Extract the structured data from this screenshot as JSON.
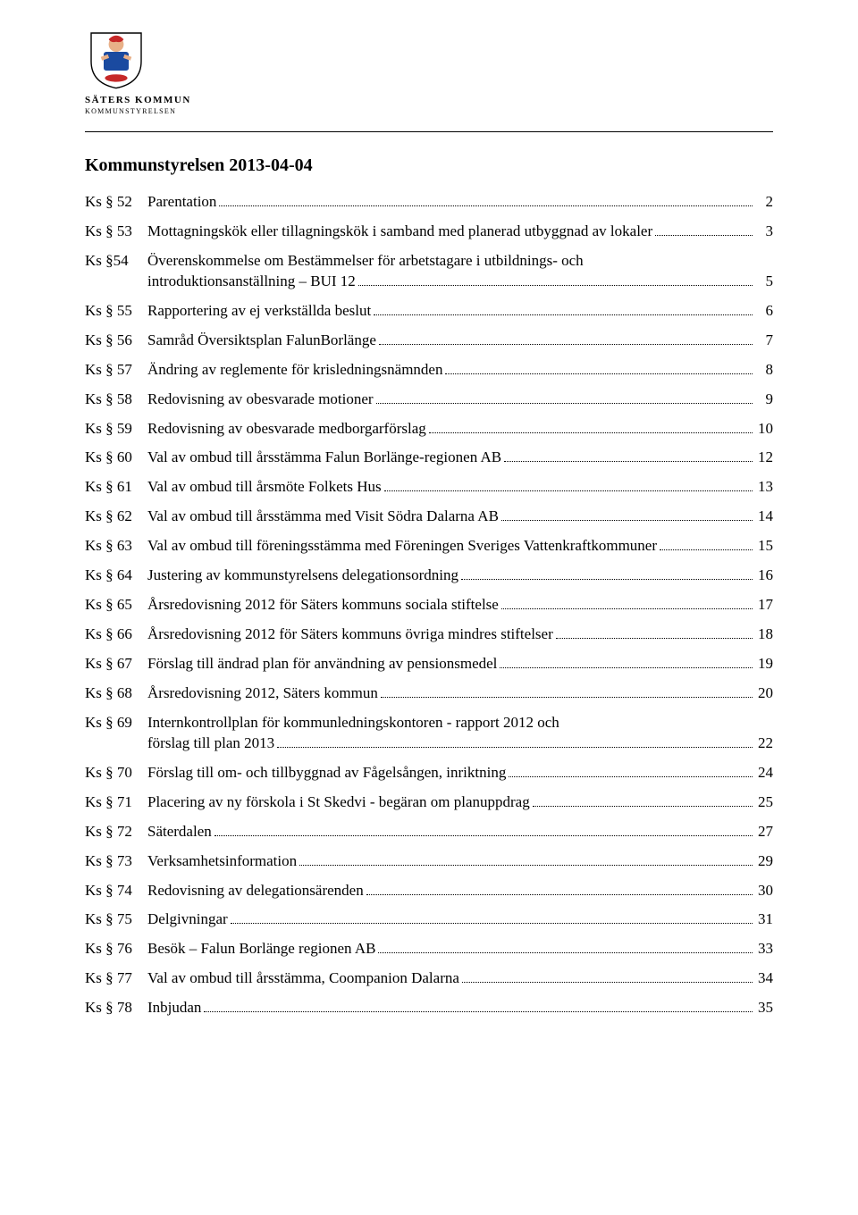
{
  "logo": {
    "main": "SÄTERS KOMMUN",
    "sub": "KOMMUNSTYRELSEN"
  },
  "title": "Kommunstyrelsen 2013-04-04",
  "toc": [
    {
      "code": "Ks § 52",
      "label": "Parentation",
      "page": "2"
    },
    {
      "code": "Ks § 53",
      "label": "Mottagningskök eller tillagningskök i samband med planerad utbyggnad av lokaler",
      "page": "3"
    },
    {
      "code": "Ks §54",
      "label_line1": "Överenskommelse om Bestämmelser för arbetstagare i utbildnings- och",
      "label_line2": "introduktionsanställning – BUI 12",
      "page": "5",
      "multiline": true
    },
    {
      "code": "Ks § 55",
      "label": "Rapportering av ej verkställda beslut",
      "page": "6"
    },
    {
      "code": "Ks § 56",
      "label": "Samråd Översiktsplan FalunBorlänge",
      "page": "7"
    },
    {
      "code": "Ks § 57",
      "label": "Ändring av reglemente för krisledningsnämnden",
      "page": "8"
    },
    {
      "code": "Ks § 58",
      "label": "Redovisning av obesvarade motioner",
      "page": "9"
    },
    {
      "code": "Ks § 59",
      "label": "Redovisning av obesvarade medborgarförslag",
      "page": "10"
    },
    {
      "code": "Ks § 60",
      "label": "Val av ombud till årsstämma Falun Borlänge-regionen AB",
      "page": "12"
    },
    {
      "code": "Ks § 61",
      "label": "Val av ombud till årsmöte Folkets Hus",
      "page": "13"
    },
    {
      "code": "Ks § 62",
      "label": "Val av ombud till årsstämma med Visit Södra Dalarna AB",
      "page": "14"
    },
    {
      "code": "Ks § 63",
      "label": "Val av ombud till föreningsstämma med Föreningen Sveriges Vattenkraftkommuner",
      "page": "15"
    },
    {
      "code": "Ks § 64",
      "label": "Justering av kommunstyrelsens delegationsordning",
      "page": "16"
    },
    {
      "code": "Ks § 65",
      "label": "Årsredovisning 2012 för Säters kommuns sociala stiftelse",
      "page": "17"
    },
    {
      "code": "Ks § 66",
      "label": "Årsredovisning 2012 för Säters kommuns övriga mindres stiftelser",
      "page": "18"
    },
    {
      "code": "Ks § 67",
      "label": "Förslag till ändrad plan för användning av pensionsmedel",
      "page": "19"
    },
    {
      "code": "Ks § 68",
      "label": "Årsredovisning 2012, Säters kommun",
      "page": "20"
    },
    {
      "code": "Ks § 69",
      "label_line1": "Internkontrollplan för kommunledningskontoren - rapport 2012 och",
      "label_line2": "förslag till plan 2013",
      "page": "22",
      "multiline": true
    },
    {
      "code": "Ks § 70",
      "label": "Förslag till om- och tillbyggnad av Fågelsången, inriktning",
      "page": "24"
    },
    {
      "code": "Ks § 71",
      "label": "Placering av ny förskola i St Skedvi - begäran om planuppdrag",
      "page": "25"
    },
    {
      "code": "Ks § 72",
      "label": "Säterdalen",
      "page": "27"
    },
    {
      "code": "Ks § 73",
      "label": "Verksamhetsinformation",
      "page": "29"
    },
    {
      "code": "Ks § 74",
      "label": "Redovisning av delegationsärenden",
      "page": "30"
    },
    {
      "code": "Ks § 75",
      "label": "Delgivningar",
      "page": "31"
    },
    {
      "code": "Ks § 76",
      "label": "Besök – Falun Borlänge regionen AB",
      "page": "33"
    },
    {
      "code": "Ks § 77",
      "label": "Val av ombud till årsstämma, Coompanion Dalarna",
      "page": "34"
    },
    {
      "code": "Ks § 78",
      "label": "Inbjudan",
      "page": "35"
    }
  ]
}
